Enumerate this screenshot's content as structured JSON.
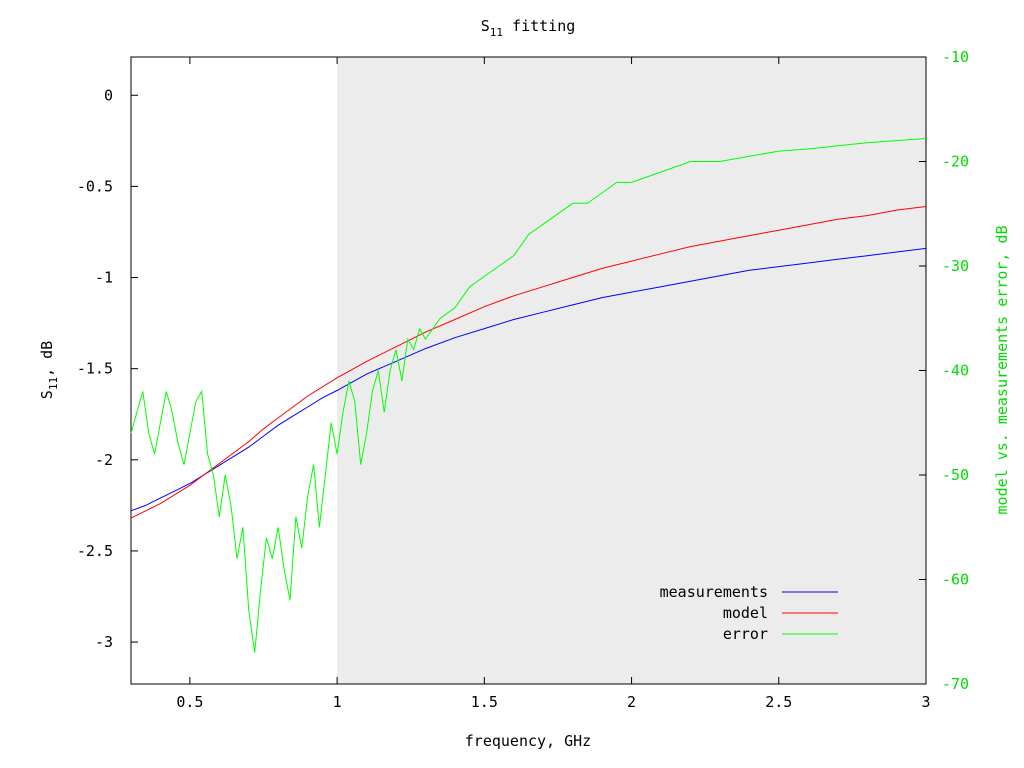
{
  "chart_data": {
    "type": "line",
    "title": "S",
    "title_sub": "11",
    "title_rest": " fitting",
    "xlabel": "frequency, GHz",
    "ylabel": "S",
    "ylabel_sub": "11",
    "ylabel_rest": ", dB",
    "y2label": "model vs. measurements error, dB",
    "xlim": [
      0.3,
      3.0
    ],
    "ylim": [
      -3.23,
      0.21
    ],
    "y2lim": [
      -70,
      -10
    ],
    "x_ticks": [
      "0.5",
      "1",
      "1.5",
      "2",
      "2.5",
      "3"
    ],
    "y_ticks": [
      "0",
      "-0.5",
      "-1",
      "-1.5",
      "-2",
      "-2.5",
      "-3"
    ],
    "y2_ticks": [
      "-10",
      "-20",
      "-30",
      "-40",
      "-50",
      "-60",
      "-70"
    ],
    "shaded_region": {
      "x_from": 1.0,
      "x_to": 3.0,
      "color": "#ececec"
    },
    "grid": false,
    "legend_position": "bottom-right",
    "colors": {
      "measurements": "#0000ff",
      "model": "#ff0000",
      "error": "#00ff00",
      "y2_axis": "#00dd00"
    },
    "series": [
      {
        "name": "measurements",
        "axis": "left",
        "x": [
          0.3,
          0.35,
          0.4,
          0.45,
          0.5,
          0.55,
          0.6,
          0.65,
          0.7,
          0.75,
          0.8,
          0.85,
          0.9,
          0.95,
          1.0,
          1.1,
          1.2,
          1.3,
          1.4,
          1.5,
          1.6,
          1.7,
          1.8,
          1.9,
          2.0,
          2.1,
          2.2,
          2.3,
          2.4,
          2.5,
          2.6,
          2.7,
          2.8,
          2.9,
          3.0
        ],
        "values": [
          -2.28,
          -2.25,
          -2.21,
          -2.17,
          -2.13,
          -2.08,
          -2.03,
          -1.98,
          -1.93,
          -1.87,
          -1.81,
          -1.76,
          -1.71,
          -1.66,
          -1.62,
          -1.53,
          -1.46,
          -1.39,
          -1.33,
          -1.28,
          -1.23,
          -1.19,
          -1.15,
          -1.11,
          -1.08,
          -1.05,
          -1.02,
          -0.99,
          -0.96,
          -0.94,
          -0.92,
          -0.9,
          -0.88,
          -0.86,
          -0.84
        ]
      },
      {
        "name": "model",
        "axis": "left",
        "x": [
          0.3,
          0.35,
          0.4,
          0.45,
          0.5,
          0.55,
          0.6,
          0.65,
          0.7,
          0.75,
          0.8,
          0.85,
          0.9,
          0.95,
          1.0,
          1.1,
          1.2,
          1.3,
          1.4,
          1.5,
          1.6,
          1.7,
          1.8,
          1.9,
          2.0,
          2.1,
          2.2,
          2.3,
          2.4,
          2.5,
          2.6,
          2.7,
          2.8,
          2.9,
          3.0
        ],
        "values": [
          -2.32,
          -2.28,
          -2.24,
          -2.19,
          -2.14,
          -2.08,
          -2.02,
          -1.96,
          -1.9,
          -1.83,
          -1.77,
          -1.71,
          -1.65,
          -1.6,
          -1.55,
          -1.46,
          -1.38,
          -1.3,
          -1.23,
          -1.16,
          -1.1,
          -1.05,
          -1.0,
          -0.95,
          -0.91,
          -0.87,
          -0.83,
          -0.8,
          -0.77,
          -0.74,
          -0.71,
          -0.68,
          -0.66,
          -0.63,
          -0.61
        ]
      },
      {
        "name": "error",
        "axis": "right",
        "x": [
          0.3,
          0.32,
          0.34,
          0.36,
          0.38,
          0.4,
          0.42,
          0.44,
          0.46,
          0.48,
          0.5,
          0.52,
          0.54,
          0.56,
          0.58,
          0.6,
          0.62,
          0.64,
          0.66,
          0.68,
          0.7,
          0.72,
          0.74,
          0.76,
          0.78,
          0.8,
          0.82,
          0.84,
          0.86,
          0.88,
          0.9,
          0.92,
          0.94,
          0.96,
          0.98,
          1.0,
          1.02,
          1.04,
          1.06,
          1.08,
          1.1,
          1.12,
          1.14,
          1.16,
          1.18,
          1.2,
          1.22,
          1.24,
          1.26,
          1.28,
          1.3,
          1.35,
          1.4,
          1.45,
          1.5,
          1.55,
          1.6,
          1.65,
          1.7,
          1.75,
          1.8,
          1.85,
          1.9,
          1.95,
          2.0,
          2.1,
          2.2,
          2.3,
          2.4,
          2.5,
          2.6,
          2.7,
          2.8,
          2.9,
          3.0
        ],
        "values": [
          -46,
          -44,
          -42,
          -46,
          -48,
          -45,
          -42,
          -44,
          -47,
          -49,
          -46,
          -43,
          -42,
          -48,
          -50,
          -54,
          -50,
          -53,
          -58,
          -55,
          -63,
          -67,
          -61,
          -56,
          -58,
          -55,
          -59,
          -62,
          -54,
          -57,
          -52,
          -49,
          -55,
          -50,
          -45,
          -48,
          -44,
          -41,
          -43,
          -49,
          -46,
          -42,
          -40,
          -44,
          -40,
          -38,
          -41,
          -37,
          -38,
          -36,
          -37,
          -35,
          -34,
          -32,
          -31,
          -30,
          -29,
          -27,
          -26,
          -25,
          -24,
          -24,
          -23,
          -22,
          -22,
          -21,
          -20,
          -20,
          -19.5,
          -19,
          -18.8,
          -18.5,
          -18.2,
          -18,
          -17.8
        ]
      }
    ]
  }
}
